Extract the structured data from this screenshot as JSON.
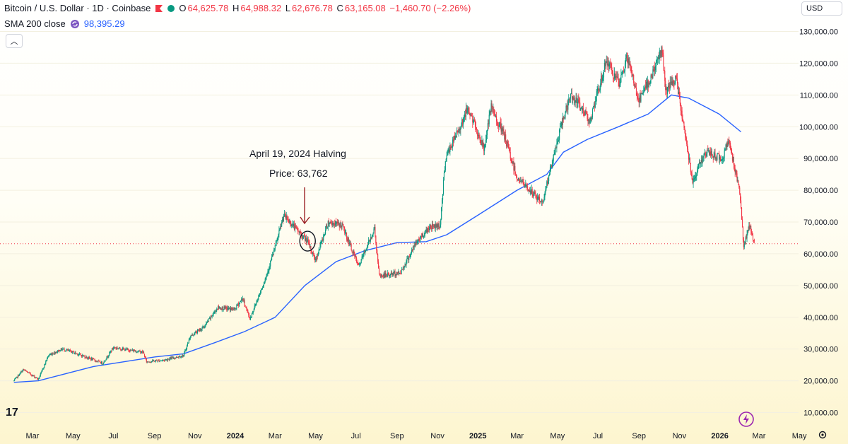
{
  "legend": {
    "symbol": "Bitcoin / U.S. Dollar · 1D · Coinbase",
    "open_key": "O",
    "open": "64,625.78",
    "high_key": "H",
    "high": "64,988.32",
    "low_key": "L",
    "low": "62,676.78",
    "close_key": "C",
    "close": "63,165.08",
    "change": "−1,460.70 (−2.26%)"
  },
  "indicator": {
    "label": "SMA 200 close",
    "value": "98,395.29"
  },
  "currency": "USD",
  "annotation": {
    "line1": "April 19, 2024 Halving",
    "line2": "Price: 63,762"
  },
  "logo_text": "17",
  "colors": {
    "up": "#089981",
    "down": "#f23645",
    "sma": "#2962ff",
    "text": "#131722"
  },
  "chart_data": {
    "type": "candlestick",
    "y_ticks": [
      10000,
      20000,
      30000,
      40000,
      50000,
      60000,
      70000,
      80000,
      90000,
      100000,
      110000,
      120000,
      130000
    ],
    "y_tick_labels": [
      "10,000.00",
      "20,000.00",
      "30,000.00",
      "40,000.00",
      "50,000.00",
      "60,000.00",
      "70,000.00",
      "80,000.00",
      "90,000.00",
      "100,000.00",
      "110,000.00",
      "120,000.00",
      "130,000.00"
    ],
    "x_labels": [
      "Mar",
      "May",
      "Jul",
      "Sep",
      "Nov",
      "2024",
      "Mar",
      "May",
      "Jul",
      "Sep",
      "Nov",
      "2025",
      "Mar",
      "May",
      "Jul",
      "Sep",
      "Nov",
      "2026",
      "Mar",
      "May"
    ],
    "x_bold": [
      5,
      11,
      17
    ],
    "price_key": [
      [
        "2023-02-01",
        20000
      ],
      [
        "2023-02-15",
        23500
      ],
      [
        "2023-03-10",
        20500
      ],
      [
        "2023-03-25",
        28000
      ],
      [
        "2023-04-15",
        30000
      ],
      [
        "2023-05-01",
        29000
      ],
      [
        "2023-06-15",
        25500
      ],
      [
        "2023-07-01",
        30500
      ],
      [
        "2023-07-15",
        30000
      ],
      [
        "2023-08-15",
        29000
      ],
      [
        "2023-08-20",
        26000
      ],
      [
        "2023-09-15",
        26500
      ],
      [
        "2023-10-15",
        28000
      ],
      [
        "2023-10-25",
        34000
      ],
      [
        "2023-11-15",
        37000
      ],
      [
        "2023-12-05",
        43000
      ],
      [
        "2023-12-31",
        42500
      ],
      [
        "2024-01-12",
        46000
      ],
      [
        "2024-01-23",
        39500
      ],
      [
        "2024-02-15",
        52000
      ],
      [
        "2024-03-01",
        62000
      ],
      [
        "2024-03-14",
        72000
      ],
      [
        "2024-04-01",
        68000
      ],
      [
        "2024-04-19",
        63762
      ],
      [
        "2024-05-01",
        58000
      ],
      [
        "2024-05-20",
        70000
      ],
      [
        "2024-06-10",
        69000
      ],
      [
        "2024-07-05",
        56000
      ],
      [
        "2024-07-29",
        68000
      ],
      [
        "2024-08-05",
        53000
      ],
      [
        "2024-09-06",
        54000
      ],
      [
        "2024-09-30",
        63500
      ],
      [
        "2024-10-20",
        68500
      ],
      [
        "2024-11-05",
        69000
      ],
      [
        "2024-11-13",
        90000
      ],
      [
        "2024-12-05",
        100000
      ],
      [
        "2024-12-17",
        106000
      ],
      [
        "2025-01-10",
        93000
      ],
      [
        "2025-01-21",
        106000
      ],
      [
        "2025-02-10",
        97000
      ],
      [
        "2025-03-01",
        84000
      ],
      [
        "2025-04-08",
        76000
      ],
      [
        "2025-05-10",
        103000
      ],
      [
        "2025-05-22",
        110000
      ],
      [
        "2025-06-20",
        102000
      ],
      [
        "2025-07-14",
        121000
      ],
      [
        "2025-08-02",
        113000
      ],
      [
        "2025-08-14",
        122000
      ],
      [
        "2025-09-01",
        108000
      ],
      [
        "2025-09-20",
        116000
      ],
      [
        "2025-10-06",
        124500
      ],
      [
        "2025-10-11",
        111000
      ],
      [
        "2025-10-27",
        115000
      ],
      [
        "2025-11-21",
        83000
      ],
      [
        "2025-12-10",
        92000
      ],
      [
        "2026-01-05",
        90000
      ],
      [
        "2026-01-14",
        96000
      ],
      [
        "2026-01-31",
        80000
      ],
      [
        "2026-02-06",
        62000
      ],
      [
        "2026-02-15",
        69000
      ],
      [
        "2026-02-22",
        63165
      ]
    ],
    "sma_key": [
      [
        "2023-02-01",
        19500
      ],
      [
        "2023-03-10",
        20000
      ],
      [
        "2023-06-01",
        24500
      ],
      [
        "2023-09-01",
        27500
      ],
      [
        "2023-10-15",
        28500
      ],
      [
        "2023-12-01",
        32000
      ],
      [
        "2024-01-15",
        35500
      ],
      [
        "2024-03-01",
        40000
      ],
      [
        "2024-04-15",
        50000
      ],
      [
        "2024-06-01",
        57500
      ],
      [
        "2024-07-15",
        61000
      ],
      [
        "2024-09-01",
        63500
      ],
      [
        "2024-10-15",
        63800
      ],
      [
        "2024-11-15",
        66000
      ],
      [
        "2024-12-31",
        72000
      ],
      [
        "2025-03-01",
        80000
      ],
      [
        "2025-04-15",
        85000
      ],
      [
        "2025-05-10",
        92000
      ],
      [
        "2025-06-15",
        96000
      ],
      [
        "2025-08-01",
        100000
      ],
      [
        "2025-09-15",
        104000
      ],
      [
        "2025-10-20",
        110000
      ],
      [
        "2025-11-15",
        109000
      ],
      [
        "2025-12-31",
        104000
      ],
      [
        "2026-02-02",
        98395
      ]
    ],
    "last_price": 63165.08,
    "halving_date": "2024-04-19",
    "halving_price": 63762
  }
}
